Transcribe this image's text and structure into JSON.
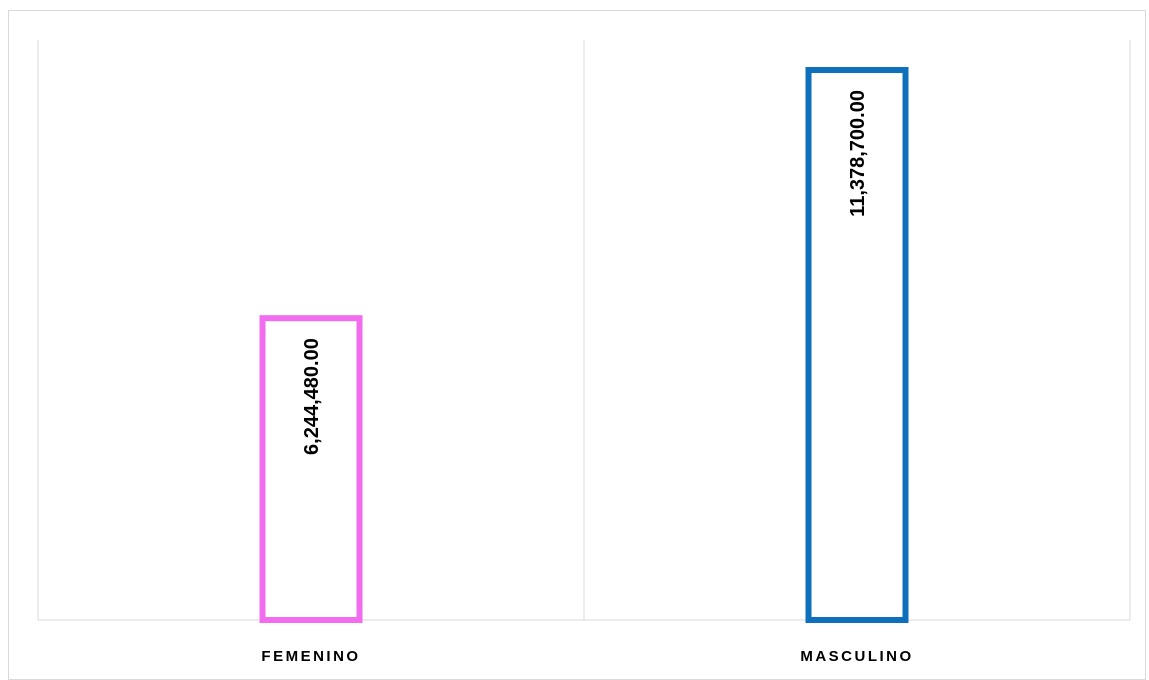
{
  "chart_data": {
    "type": "bar",
    "categories": [
      "FEMENINO",
      "MASCULINO"
    ],
    "values": [
      6244480,
      11378700
    ],
    "data_labels": [
      "6,244,480.00",
      "11,378,700.00"
    ],
    "colors": [
      "#f26cf0",
      "#0e6fbb"
    ],
    "title": "",
    "xlabel": "",
    "ylabel": "",
    "ylim": [
      0,
      12000000
    ],
    "grid": "vertical category separators",
    "legend": "none",
    "bar_style": "outlined"
  }
}
